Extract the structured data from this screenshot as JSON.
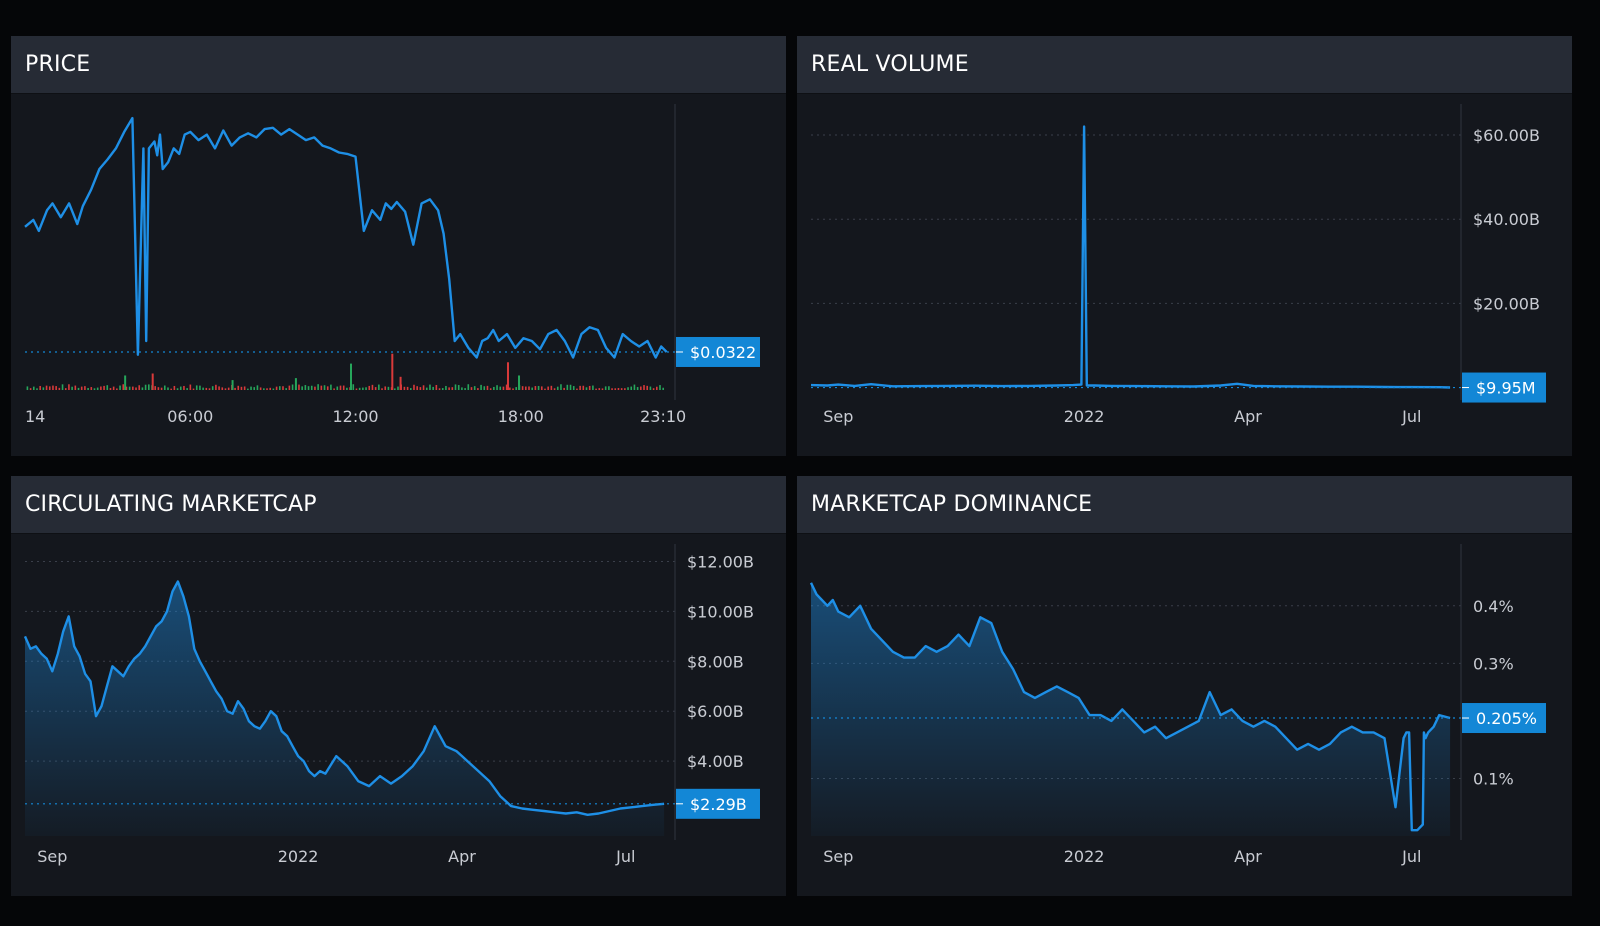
{
  "colors": {
    "line": "#1e8fe6",
    "badge": "#1387d6",
    "grid": "#3a3f4a",
    "up": "#26a65b",
    "down": "#d93a3a"
  },
  "panels": [
    {
      "title": "PRICE"
    },
    {
      "title": "REAL VOLUME"
    },
    {
      "title": "CIRCULATING MARKETCAP"
    },
    {
      "title": "MARKETCAP DOMINANCE"
    }
  ],
  "chart_data": [
    {
      "type": "line",
      "title": "PRICE",
      "x_labels": [
        "14",
        "06:00",
        "12:00",
        "18:00",
        "23:10"
      ],
      "x_tick_positions": [
        0,
        6,
        12,
        18,
        23.17
      ],
      "x_range": [
        0,
        23.6
      ],
      "ylim": [
        0.029,
        0.0495
      ],
      "current_value": 0.0322,
      "current_label": "$0.0322",
      "y_axis_labels": [],
      "x": [
        0,
        0.3,
        0.5,
        0.8,
        1.0,
        1.3,
        1.6,
        1.9,
        2.1,
        2.4,
        2.7,
        3.0,
        3.3,
        3.6,
        3.9,
        4.1,
        4.3,
        4.4,
        4.5,
        4.7,
        4.8,
        4.9,
        5.0,
        5.2,
        5.4,
        5.6,
        5.8,
        6.0,
        6.3,
        6.6,
        6.9,
        7.2,
        7.5,
        7.8,
        8.1,
        8.4,
        8.7,
        9.0,
        9.3,
        9.6,
        9.9,
        10.2,
        10.5,
        10.8,
        11.1,
        11.4,
        11.7,
        12.0,
        12.3,
        12.6,
        12.9,
        13.1,
        13.3,
        13.5,
        13.8,
        14.1,
        14.4,
        14.7,
        15.0,
        15.2,
        15.4,
        15.6,
        15.8,
        16.1,
        16.4,
        16.6,
        16.8,
        17.0,
        17.2,
        17.5,
        17.8,
        18.1,
        18.4,
        18.7,
        19.0,
        19.3,
        19.6,
        19.9,
        20.2,
        20.5,
        20.8,
        21.1,
        21.4,
        21.7,
        22.0,
        22.3,
        22.6,
        22.9,
        23.1,
        23.3
      ],
      "y": [
        0.0413,
        0.0418,
        0.041,
        0.0425,
        0.043,
        0.042,
        0.043,
        0.0415,
        0.0428,
        0.044,
        0.0455,
        0.0462,
        0.047,
        0.0482,
        0.0492,
        0.032,
        0.047,
        0.033,
        0.047,
        0.0475,
        0.0465,
        0.048,
        0.0455,
        0.046,
        0.047,
        0.0466,
        0.048,
        0.0482,
        0.0476,
        0.048,
        0.047,
        0.0483,
        0.0472,
        0.0478,
        0.0481,
        0.0478,
        0.0484,
        0.0485,
        0.048,
        0.0484,
        0.048,
        0.0476,
        0.0478,
        0.0472,
        0.047,
        0.0467,
        0.0466,
        0.0464,
        0.041,
        0.0425,
        0.0418,
        0.043,
        0.0426,
        0.0431,
        0.0424,
        0.04,
        0.043,
        0.0433,
        0.0425,
        0.0408,
        0.0375,
        0.033,
        0.0335,
        0.0325,
        0.0318,
        0.033,
        0.0332,
        0.0338,
        0.033,
        0.0335,
        0.0325,
        0.0332,
        0.033,
        0.0324,
        0.0335,
        0.0338,
        0.033,
        0.0318,
        0.0335,
        0.034,
        0.0338,
        0.0325,
        0.0318,
        0.0335,
        0.033,
        0.0326,
        0.033,
        0.0318,
        0.0326,
        0.0322
      ],
      "volume_bars": {
        "count": 200,
        "ylim": [
          0,
          100
        ],
        "spikes": [
          {
            "at": 3.6,
            "value": 22,
            "color": "up"
          },
          {
            "at": 4.6,
            "value": 25,
            "color": "down"
          },
          {
            "at": 7.5,
            "value": 15,
            "color": "up"
          },
          {
            "at": 9.8,
            "value": 18,
            "color": "up"
          },
          {
            "at": 11.8,
            "value": 40,
            "color": "up"
          },
          {
            "at": 13.3,
            "value": 55,
            "color": "down"
          },
          {
            "at": 13.6,
            "value": 20,
            "color": "down"
          },
          {
            "at": 17.5,
            "value": 42,
            "color": "down"
          },
          {
            "at": 17.9,
            "value": 22,
            "color": "up"
          }
        ]
      }
    },
    {
      "type": "line",
      "title": "REAL VOLUME",
      "x_labels": [
        "Sep",
        "2022",
        "Apr",
        "Jul"
      ],
      "x_tick_positions": [
        1,
        5.5,
        8.5,
        11.5
      ],
      "x_range": [
        0.5,
        12.4
      ],
      "ylim": [
        -2,
        65
      ],
      "y_axis_labels": [
        {
          "value": 60,
          "label": "$60.00B"
        },
        {
          "value": 40,
          "label": "$40.00B"
        },
        {
          "value": 20,
          "label": "$20.00B"
        }
      ],
      "current_value": 0.00995,
      "current_label": "$9.95M",
      "x": [
        0.5,
        0.8,
        1.0,
        1.3,
        1.6,
        2.0,
        2.5,
        3.0,
        3.5,
        4.0,
        4.5,
        5.0,
        5.3,
        5.45,
        5.5,
        5.55,
        5.7,
        6.0,
        6.5,
        7.0,
        7.5,
        8.0,
        8.3,
        8.6,
        9.0,
        9.5,
        10.0,
        10.5,
        11.0,
        11.5,
        12.0,
        12.2
      ],
      "y": [
        0.6,
        0.5,
        0.7,
        0.4,
        0.8,
        0.3,
        0.35,
        0.4,
        0.45,
        0.35,
        0.4,
        0.5,
        0.6,
        0.7,
        62,
        0.5,
        0.5,
        0.4,
        0.35,
        0.3,
        0.25,
        0.5,
        0.9,
        0.4,
        0.3,
        0.25,
        0.2,
        0.2,
        0.15,
        0.12,
        0.1,
        0.01
      ]
    },
    {
      "type": "area",
      "title": "CIRCULATING MARKETCAP",
      "x_labels": [
        "Sep",
        "2022",
        "Apr",
        "Jul"
      ],
      "x_tick_positions": [
        1,
        5.5,
        8.5,
        11.5
      ],
      "x_range": [
        0.5,
        12.4
      ],
      "ylim": [
        1.0,
        12.3
      ],
      "y_axis_labels": [
        {
          "value": 12,
          "label": "$12.00B"
        },
        {
          "value": 10,
          "label": "$10.00B"
        },
        {
          "value": 8,
          "label": "$8.00B"
        },
        {
          "value": 6,
          "label": "$6.00B"
        },
        {
          "value": 4,
          "label": "$4.00B"
        }
      ],
      "current_value": 2.29,
      "current_label": "$2.29B",
      "x": [
        0.5,
        0.6,
        0.7,
        0.8,
        0.9,
        1.0,
        1.1,
        1.2,
        1.3,
        1.4,
        1.5,
        1.6,
        1.7,
        1.8,
        1.9,
        2.0,
        2.1,
        2.2,
        2.3,
        2.4,
        2.5,
        2.6,
        2.7,
        2.8,
        2.9,
        3.0,
        3.1,
        3.2,
        3.3,
        3.4,
        3.5,
        3.6,
        3.7,
        3.8,
        3.9,
        4.0,
        4.1,
        4.2,
        4.3,
        4.4,
        4.5,
        4.6,
        4.7,
        4.8,
        4.9,
        5.0,
        5.1,
        5.2,
        5.3,
        5.4,
        5.5,
        5.6,
        5.7,
        5.8,
        5.9,
        6.0,
        6.2,
        6.4,
        6.6,
        6.8,
        7.0,
        7.2,
        7.4,
        7.6,
        7.8,
        8.0,
        8.2,
        8.4,
        8.5,
        8.6,
        8.8,
        9.0,
        9.2,
        9.4,
        9.6,
        9.8,
        10.0,
        10.2,
        10.4,
        10.6,
        10.8,
        11.0,
        11.2,
        11.4,
        11.6,
        11.8,
        12.0,
        12.2
      ],
      "y": [
        9.0,
        8.5,
        8.6,
        8.3,
        8.1,
        7.6,
        8.3,
        9.2,
        9.8,
        8.6,
        8.2,
        7.5,
        7.2,
        5.8,
        6.2,
        7.0,
        7.8,
        7.6,
        7.4,
        7.8,
        8.1,
        8.3,
        8.6,
        9.0,
        9.4,
        9.6,
        10.0,
        10.8,
        11.2,
        10.6,
        9.8,
        8.5,
        8.0,
        7.6,
        7.2,
        6.8,
        6.5,
        6.0,
        5.9,
        6.4,
        6.1,
        5.6,
        5.4,
        5.3,
        5.6,
        6.0,
        5.8,
        5.2,
        5.0,
        4.6,
        4.2,
        4.0,
        3.6,
        3.4,
        3.6,
        3.5,
        4.2,
        3.8,
        3.2,
        3.0,
        3.4,
        3.1,
        3.4,
        3.8,
        4.4,
        5.4,
        4.6,
        4.4,
        4.2,
        4.0,
        3.6,
        3.2,
        2.6,
        2.2,
        2.1,
        2.05,
        2.0,
        1.95,
        1.9,
        1.95,
        1.85,
        1.9,
        2.0,
        2.1,
        2.15,
        2.2,
        2.25,
        2.29
      ]
    },
    {
      "type": "area",
      "title": "MARKETCAP DOMINANCE",
      "x_labels": [
        "Sep",
        "2022",
        "Apr",
        "Jul"
      ],
      "x_tick_positions": [
        1,
        5.5,
        8.5,
        11.5
      ],
      "x_range": [
        0.5,
        12.4
      ],
      "ylim": [
        0.0,
        0.49
      ],
      "y_axis_labels": [
        {
          "value": 0.4,
          "label": "0.4%"
        },
        {
          "value": 0.3,
          "label": "0.3%"
        },
        {
          "value": 0.1,
          "label": "0.1%"
        }
      ],
      "current_value": 0.205,
      "current_label": "0.205%",
      "x": [
        0.5,
        0.6,
        0.7,
        0.8,
        0.9,
        1.0,
        1.2,
        1.4,
        1.6,
        1.8,
        2.0,
        2.2,
        2.4,
        2.6,
        2.8,
        3.0,
        3.2,
        3.4,
        3.6,
        3.8,
        4.0,
        4.2,
        4.4,
        4.6,
        4.8,
        5.0,
        5.2,
        5.4,
        5.6,
        5.8,
        6.0,
        6.2,
        6.4,
        6.6,
        6.8,
        7.0,
        7.2,
        7.4,
        7.6,
        7.8,
        8.0,
        8.2,
        8.4,
        8.6,
        8.8,
        9.0,
        9.2,
        9.4,
        9.6,
        9.8,
        10.0,
        10.2,
        10.4,
        10.6,
        10.8,
        11.0,
        11.2,
        11.35,
        11.4,
        11.45,
        11.5,
        11.6,
        11.7,
        11.72,
        11.75,
        11.8,
        11.9,
        12.0,
        12.2
      ],
      "y": [
        0.44,
        0.42,
        0.41,
        0.4,
        0.41,
        0.39,
        0.38,
        0.4,
        0.36,
        0.34,
        0.32,
        0.31,
        0.31,
        0.33,
        0.32,
        0.33,
        0.35,
        0.33,
        0.38,
        0.37,
        0.32,
        0.29,
        0.25,
        0.24,
        0.25,
        0.26,
        0.25,
        0.24,
        0.21,
        0.21,
        0.2,
        0.22,
        0.2,
        0.18,
        0.19,
        0.17,
        0.18,
        0.19,
        0.2,
        0.25,
        0.21,
        0.22,
        0.2,
        0.19,
        0.2,
        0.19,
        0.17,
        0.15,
        0.16,
        0.15,
        0.16,
        0.18,
        0.19,
        0.18,
        0.18,
        0.17,
        0.05,
        0.17,
        0.18,
        0.18,
        0.01,
        0.01,
        0.02,
        0.18,
        0.17,
        0.18,
        0.19,
        0.21,
        0.205
      ]
    }
  ]
}
